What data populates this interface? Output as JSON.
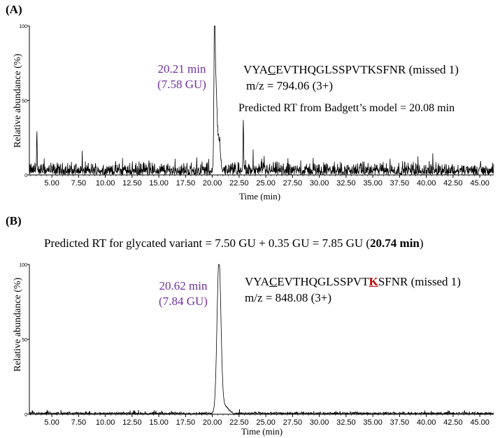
{
  "chart_data": [
    {
      "type": "line",
      "panel_label": "(A)",
      "xlabel": "Time (min)",
      "ylabel": "Relative abundance (%)",
      "xlim": [
        2.9,
        46.3
      ],
      "ylim": [
        0,
        100
      ],
      "x_ticks": [
        "5.00",
        "7.50",
        "10.00",
        "12.50",
        "15.00",
        "17.50",
        "20.00",
        "22.50",
        "25.00",
        "27.50",
        "30.00",
        "32.50",
        "35.00",
        "37.50",
        "40.00",
        "42.50",
        "45.00"
      ],
      "y_ticks": [
        "100",
        "50",
        "0"
      ],
      "peak_time": "20.21 min",
      "peak_gu": "(7.58 GU)",
      "peptide": {
        "prefix": "VYA",
        "underlined": "C",
        "middle": "EVTHQGLSSPVTKSFNR",
        "suffix": " (missed 1)"
      },
      "mz": "m/z = 794.06 (3+)",
      "prediction": "Predicted RT from Badgett’s model = 20.08 min",
      "peaks": [
        {
          "x": 20.21,
          "y": 100,
          "width": 0.06
        },
        {
          "x": 20.35,
          "y": 48,
          "width": 0.08
        },
        {
          "x": 20.6,
          "y": 22,
          "width": 0.15
        },
        {
          "x": 22.9,
          "y": 36,
          "width": 0.03
        },
        {
          "x": 3.6,
          "y": 25,
          "width": 0.03
        }
      ],
      "noise_level": 7
    },
    {
      "type": "line",
      "panel_label": "(B)",
      "title_prefix": "Predicted RT for glycated variant = 7.50 GU + 0.35 GU = 7.85 GU (",
      "title_bold": "20.74 min",
      "title_suffix": ")",
      "xlabel": "Time (min)",
      "ylabel": "Relative abundance (%)",
      "xlim": [
        2.9,
        46.3
      ],
      "ylim": [
        0,
        100
      ],
      "x_ticks": [
        "5.00",
        "7.50",
        "10.00",
        "12.50",
        "15.00",
        "17.50",
        "20.00",
        "22.50",
        "25.00",
        "27.50",
        "30.00",
        "32.50",
        "35.00",
        "37.50",
        "40.00",
        "42.50",
        "45.00"
      ],
      "y_ticks": [
        "100",
        "50",
        "0"
      ],
      "peak_time": "20.62 min",
      "peak_gu": "(7.84 GU)",
      "peptide": {
        "prefix": "VYA",
        "underlined": "C",
        "middle": "EVTHQGLSSPVT",
        "modified": "K",
        "suffix": "SFNR (missed 1)"
      },
      "mz": "m/z = 848.08 (3+)",
      "peaks": [
        {
          "x": 20.62,
          "y": 100,
          "width": 0.18
        },
        {
          "x": 21.0,
          "y": 6,
          "width": 0.4
        }
      ],
      "noise_level": 1.2
    }
  ]
}
